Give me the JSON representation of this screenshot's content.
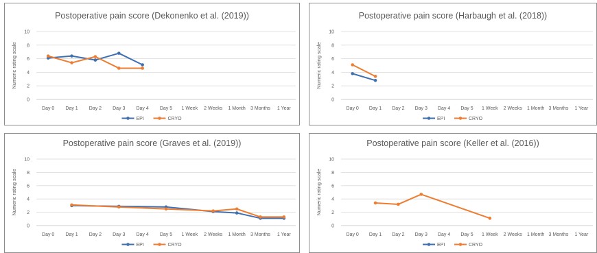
{
  "colors": {
    "EPI": "#3e6fb0",
    "CRYO": "#ed7d31",
    "grid": "#d9d9d9",
    "text": "#595959"
  },
  "chart_data": [
    {
      "type": "line",
      "title": "Postoperative pain score (Dekonenko et al. (2019))",
      "ylabel": "Numeric rating scale",
      "xlabel": "",
      "categories": [
        "Day 0",
        "Day 1",
        "Day 2",
        "Day 3",
        "Day 4",
        "Day 5",
        "1 Week",
        "2 Weeks",
        "1 Month",
        "3 Months",
        "1 Year"
      ],
      "ylim": [
        0,
        10
      ],
      "yticks": [
        0,
        2,
        4,
        6,
        8,
        10
      ],
      "grid": true,
      "legend": "bottom",
      "series": [
        {
          "name": "EPI",
          "values": [
            6.1,
            6.4,
            5.8,
            6.8,
            5.1,
            null,
            null,
            null,
            null,
            null,
            null
          ]
        },
        {
          "name": "CRYO",
          "values": [
            6.4,
            5.4,
            6.3,
            4.6,
            4.6,
            null,
            null,
            null,
            null,
            null,
            null
          ]
        }
      ]
    },
    {
      "type": "line",
      "title": "Postoperative pain score (Harbaugh et al. (2018))",
      "ylabel": "Numeric rating scale",
      "xlabel": "",
      "categories": [
        "Day 0",
        "Day 1",
        "Day 2",
        "Day 3",
        "Day 4",
        "Day 5",
        "1 Week",
        "2 Weeks",
        "1 Month",
        "3 Months",
        "1 Year"
      ],
      "ylim": [
        0,
        10
      ],
      "yticks": [
        0,
        2,
        4,
        6,
        8,
        10
      ],
      "grid": true,
      "legend": "bottom",
      "series": [
        {
          "name": "EPI",
          "values": [
            3.8,
            2.8,
            null,
            null,
            null,
            null,
            null,
            null,
            null,
            null,
            null
          ]
        },
        {
          "name": "CRYO",
          "values": [
            5.1,
            3.4,
            null,
            null,
            null,
            null,
            null,
            null,
            null,
            null,
            null
          ]
        }
      ]
    },
    {
      "type": "line",
      "title": "Postoperative pain score (Graves et al. (2019))",
      "ylabel": "Numeric rating scale",
      "xlabel": "",
      "categories": [
        "Day 0",
        "Day 1",
        "Day 2",
        "Day 3",
        "Day 4",
        "Day 5",
        "1 Week",
        "2 Weeks",
        "1 Month",
        "3 Months",
        "1 Year"
      ],
      "ylim": [
        0,
        10
      ],
      "yticks": [
        0,
        2,
        4,
        6,
        8,
        10
      ],
      "grid": true,
      "legend": "bottom",
      "series": [
        {
          "name": "EPI",
          "values": [
            null,
            3.0,
            null,
            2.9,
            null,
            2.8,
            null,
            2.1,
            1.9,
            1.1,
            1.1
          ]
        },
        {
          "name": "CRYO",
          "values": [
            null,
            3.1,
            null,
            2.8,
            null,
            2.5,
            null,
            2.2,
            2.5,
            1.3,
            1.3
          ]
        }
      ]
    },
    {
      "type": "line",
      "title": "Postoperative pain score (Keller et al. (2016))",
      "ylabel": "Numeric rating scale",
      "xlabel": "",
      "categories": [
        "Day 0",
        "Day 1",
        "Day 2",
        "Day 3",
        "Day 4",
        "Day 5",
        "1 Week",
        "2 Weeks",
        "1 Month",
        "3 Months",
        "1 Year"
      ],
      "ylim": [
        0,
        10
      ],
      "yticks": [
        0,
        2,
        4,
        6,
        8,
        10
      ],
      "grid": true,
      "legend": "bottom",
      "series": [
        {
          "name": "EPI",
          "values": [
            null,
            null,
            null,
            null,
            null,
            null,
            null,
            null,
            null,
            null,
            null
          ]
        },
        {
          "name": "CRYO",
          "values": [
            null,
            3.4,
            3.2,
            4.7,
            null,
            null,
            1.1,
            null,
            null,
            null,
            null
          ]
        }
      ]
    }
  ]
}
